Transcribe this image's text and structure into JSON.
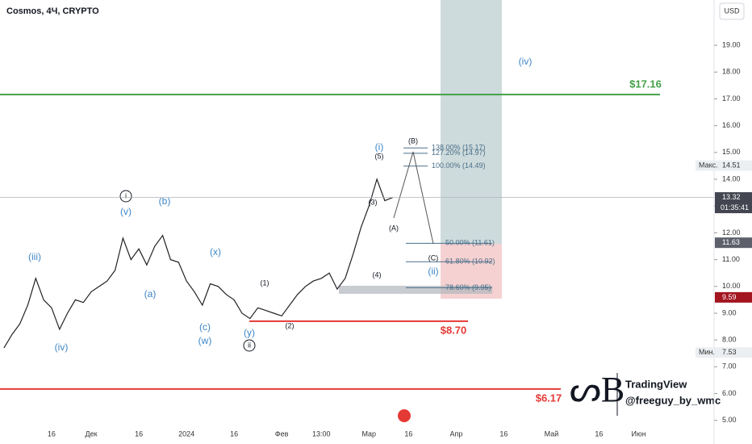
{
  "header": {
    "symbol": "Cosmos, 4Ч, CRYPTO",
    "currency": "USD"
  },
  "chart_data": {
    "type": "line",
    "color": "#222222",
    "categories": [
      null,
      null,
      null,
      null,
      null,
      null,
      "16",
      null,
      null,
      null,
      null,
      "Дек",
      null,
      null,
      null,
      null,
      null,
      "16",
      null,
      null,
      null,
      null,
      null,
      "2024",
      null,
      null,
      null,
      null,
      null,
      "16",
      null,
      null,
      null,
      null,
      null,
      "Фев",
      null,
      null,
      null,
      null,
      "13:00",
      null,
      null,
      null,
      null,
      null,
      "Мар",
      null,
      null,
      null,
      null,
      "16",
      null,
      null,
      null,
      null,
      null,
      "Апр",
      null,
      null,
      null,
      null,
      null,
      "16",
      null,
      null,
      null,
      null,
      null,
      "Май",
      null,
      null,
      null,
      null,
      null,
      "16",
      null,
      null,
      null,
      null,
      "Июн",
      null,
      null,
      null,
      null,
      null,
      null,
      null,
      null,
      null
    ],
    "values": [
      7.7,
      8.2,
      8.6,
      9.3,
      10.3,
      9.5,
      9.2,
      8.4,
      9.0,
      9.5,
      9.4,
      9.8,
      10.0,
      10.2,
      10.6,
      11.8,
      11.0,
      11.4,
      10.8,
      11.5,
      11.9,
      11.0,
      10.9,
      10.2,
      9.8,
      9.3,
      10.1,
      10.0,
      9.7,
      9.5,
      9.0,
      8.8,
      9.2,
      9.1,
      9.0,
      8.9,
      9.3,
      9.7,
      10.0,
      10.2,
      10.3,
      10.5,
      9.9,
      10.3,
      11.2,
      12.2,
      13.0,
      14.0,
      13.2,
      13.32,
      null,
      null,
      null,
      null,
      null,
      null,
      null,
      null,
      null,
      null,
      null,
      null,
      null,
      null,
      null,
      null,
      null,
      null,
      null,
      null,
      null,
      null,
      null,
      null,
      null,
      null,
      null,
      null,
      null,
      null,
      null,
      null,
      null,
      null,
      null,
      null,
      null,
      null,
      null,
      null
    ],
    "ylim": [
      4.72,
      20.69
    ],
    "yticks": [
      {
        "value": 5,
        "label": "5.00"
      },
      {
        "value": 6,
        "label": "6.00"
      },
      {
        "value": 7,
        "label": "7.00"
      },
      {
        "value": 8,
        "label": "8.00"
      },
      {
        "value": 9,
        "label": "9.00"
      },
      {
        "value": 10,
        "label": "10.00"
      },
      {
        "value": 11,
        "label": "11.00"
      },
      {
        "value": 12,
        "label": "12.00"
      },
      {
        "value": 13,
        "label": "13.00"
      },
      {
        "value": 14,
        "label": "14.00"
      },
      {
        "value": 15,
        "label": "15.00"
      },
      {
        "value": 16,
        "label": "16.00"
      },
      {
        "value": 17,
        "label": "17.00"
      },
      {
        "value": 18,
        "label": "18.00"
      },
      {
        "value": 19,
        "label": "19.00"
      }
    ],
    "levels": [
      {
        "value": 17.16,
        "label": "$17.16",
        "color": "#43a047"
      },
      {
        "value": 8.7,
        "label": "$8.70",
        "color": "#e53935"
      },
      {
        "value": 6.17,
        "label": "$6.17",
        "color": "#e53935"
      }
    ],
    "fib": [
      {
        "value": 15.17,
        "label": "138.00% (15.17)"
      },
      {
        "value": 14.97,
        "label": "127.20% (14.97)"
      },
      {
        "value": 14.49,
        "label": "100.00% (14.49)"
      },
      {
        "value": 11.61,
        "label": "50.00% (11.61)"
      },
      {
        "value": 10.92,
        "label": "61.80% (10.92)"
      },
      {
        "value": 9.95,
        "label": "78.60% (9.95)"
      }
    ],
    "price_labels": [
      {
        "value": 14.51,
        "tag": "Макс.",
        "color": "#eceff2"
      },
      {
        "value": 13.32,
        "sub": "01:35:41",
        "color": "#434651"
      },
      {
        "value": 11.63,
        "color": "#5d606b"
      },
      {
        "value": 9.59,
        "color": "#a3151f"
      },
      {
        "value": 7.53,
        "tag": "Мин.",
        "color": "#eceff2"
      }
    ],
    "waves": [
      "(iii)",
      "(iv)",
      "i",
      "(v)",
      "(b)",
      "(a)",
      "(x)",
      "(c)",
      "(w)",
      "(1)",
      "(2)",
      "(y)",
      "ii",
      "(i)",
      "(5)",
      "(3)",
      "(A)",
      "(4)",
      "(B)",
      "(C)",
      "(ii)",
      "(iv)"
    ]
  },
  "watermark": {
    "brand": "TradingView",
    "author": "@freeguy_by_wmc"
  }
}
